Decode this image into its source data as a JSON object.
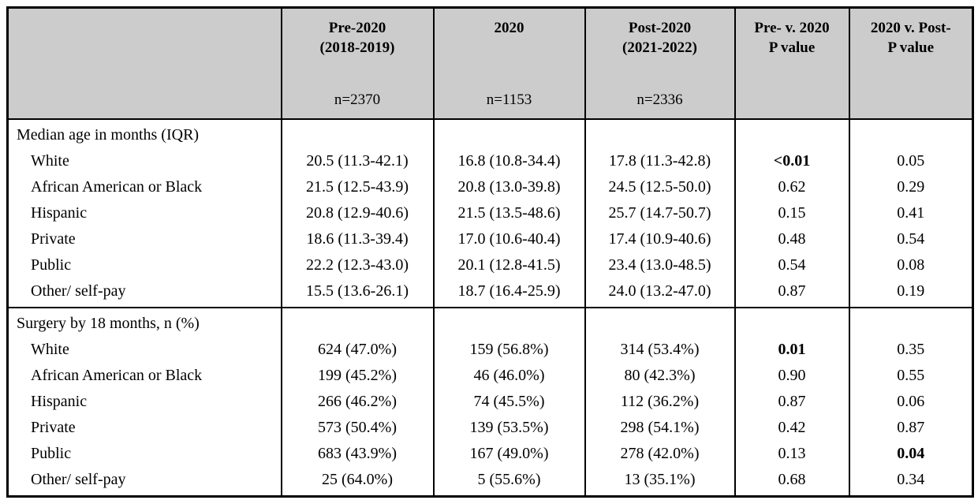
{
  "colors": {
    "header_bg": "#cccccc",
    "border": "#000000",
    "text": "#000000",
    "body_bg": "#ffffff"
  },
  "table": {
    "header": {
      "corner": "",
      "columns": [
        {
          "line1": "Pre-2020",
          "line2": "(2018-2019)",
          "n": "n=2370"
        },
        {
          "line1": "2020",
          "line2": "",
          "n": "n=1153"
        },
        {
          "line1": "Post-2020",
          "line2": "(2021-2022)",
          "n": "n=2336"
        },
        {
          "line1": "Pre- v. 2020",
          "line2": "P value",
          "n": ""
        },
        {
          "line1": "2020 v. Post-",
          "line2": "P value",
          "n": ""
        }
      ]
    },
    "sections": [
      {
        "label": "Median age in months (IQR)",
        "rows": [
          {
            "label": "White",
            "cells": [
              {
                "text": "20.5 (11.3-42.1)"
              },
              {
                "text": "16.8 (10.8-34.4)"
              },
              {
                "text": "17.8 (11.3-42.8)"
              },
              {
                "text": "<0.01",
                "bold": true
              },
              {
                "text": "0.05"
              }
            ]
          },
          {
            "label": "African American or Black",
            "cells": [
              {
                "text": "21.5 (12.5-43.9)"
              },
              {
                "text": "20.8 (13.0-39.8)"
              },
              {
                "text": "24.5 (12.5-50.0)"
              },
              {
                "text": "0.62"
              },
              {
                "text": "0.29"
              }
            ]
          },
          {
            "label": "Hispanic",
            "cells": [
              {
                "text": "20.8 (12.9-40.6)"
              },
              {
                "text": "21.5 (13.5-48.6)"
              },
              {
                "text": "25.7 (14.7-50.7)"
              },
              {
                "text": "0.15"
              },
              {
                "text": "0.41"
              }
            ]
          },
          {
            "label": "Private",
            "cells": [
              {
                "text": "18.6 (11.3-39.4)"
              },
              {
                "text": "17.0 (10.6-40.4)"
              },
              {
                "text": "17.4 (10.9-40.6)"
              },
              {
                "text": "0.48"
              },
              {
                "text": "0.54"
              }
            ]
          },
          {
            "label": "Public",
            "cells": [
              {
                "text": "22.2 (12.3-43.0)"
              },
              {
                "text": "20.1 (12.8-41.5)"
              },
              {
                "text": "23.4 (13.0-48.5)"
              },
              {
                "text": "0.54"
              },
              {
                "text": "0.08"
              }
            ]
          },
          {
            "label": "Other/ self-pay",
            "cells": [
              {
                "text": "15.5 (13.6-26.1)"
              },
              {
                "text": "18.7 (16.4-25.9)"
              },
              {
                "text": "24.0 (13.2-47.0)"
              },
              {
                "text": "0.87"
              },
              {
                "text": "0.19"
              }
            ]
          }
        ]
      },
      {
        "label": "Surgery by 18 months, n (%)",
        "rows": [
          {
            "label": "White",
            "cells": [
              {
                "text": "624 (47.0%)"
              },
              {
                "text": "159 (56.8%)"
              },
              {
                "text": "314 (53.4%)"
              },
              {
                "text": "0.01",
                "bold": true
              },
              {
                "text": "0.35"
              }
            ]
          },
          {
            "label": "African American or Black",
            "cells": [
              {
                "text": "199 (45.2%)"
              },
              {
                "text": "46 (46.0%)"
              },
              {
                "text": "80 (42.3%)"
              },
              {
                "text": "0.90"
              },
              {
                "text": "0.55"
              }
            ]
          },
          {
            "label": "Hispanic",
            "cells": [
              {
                "text": "266 (46.2%)"
              },
              {
                "text": "74 (45.5%)"
              },
              {
                "text": "112 (36.2%)"
              },
              {
                "text": "0.87"
              },
              {
                "text": "0.06"
              }
            ]
          },
          {
            "label": "Private",
            "cells": [
              {
                "text": "573 (50.4%)"
              },
              {
                "text": "139 (53.5%)"
              },
              {
                "text": "298 (54.1%)"
              },
              {
                "text": "0.42"
              },
              {
                "text": "0.87"
              }
            ]
          },
          {
            "label": "Public",
            "cells": [
              {
                "text": "683 (43.9%)"
              },
              {
                "text": "167 (49.0%)"
              },
              {
                "text": "278 (42.0%)"
              },
              {
                "text": "0.13"
              },
              {
                "text": "0.04",
                "bold": true
              }
            ]
          },
          {
            "label": "Other/ self-pay",
            "cells": [
              {
                "text": "25 (64.0%)"
              },
              {
                "text": "5 (55.6%)"
              },
              {
                "text": "13 (35.1%)"
              },
              {
                "text": "0.68"
              },
              {
                "text": "0.34"
              }
            ]
          }
        ]
      }
    ]
  }
}
